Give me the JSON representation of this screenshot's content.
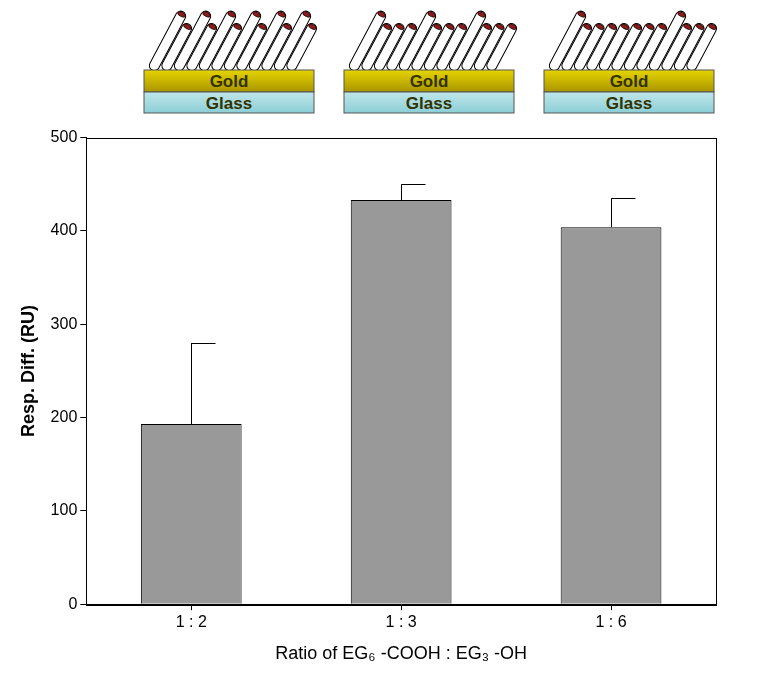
{
  "chart_data": {
    "type": "bar",
    "categories": [
      "1 : 2",
      "1 : 3",
      "1 : 6"
    ],
    "values": [
      193,
      433,
      404
    ],
    "errors": [
      87,
      17,
      31
    ],
    "color": "#999999",
    "x_label": "Ratio of EG₆ -COOH : EG₃ -OH",
    "y_label": "Resp. Diff. (RU)",
    "ylim": [
      0,
      500
    ],
    "yticks": [
      0,
      100,
      200,
      300,
      400,
      500
    ],
    "grid": false
  },
  "diagram": {
    "panels": [
      {
        "layers": [
          "Gold",
          "Glass"
        ]
      },
      {
        "layers": [
          "Gold",
          "Glass"
        ]
      },
      {
        "layers": [
          "Gold",
          "Glass"
        ]
      }
    ]
  }
}
